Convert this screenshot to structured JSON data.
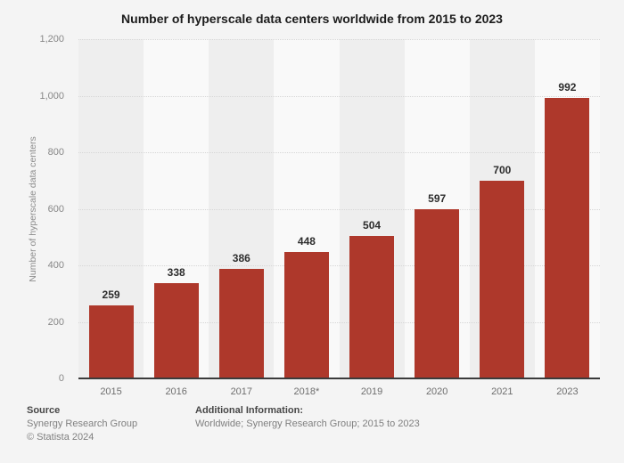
{
  "chart_data": {
    "type": "bar",
    "title": "Number of hyperscale data centers worldwide from 2015 to 2023",
    "categories": [
      "2015",
      "2016",
      "2017",
      "2018*",
      "2019",
      "2020",
      "2021",
      "2023"
    ],
    "values": [
      259,
      338,
      386,
      448,
      504,
      597,
      700,
      992
    ],
    "xlabel": "",
    "ylabel": "Number of hyperscale data centers",
    "ylim": [
      0,
      1200
    ],
    "ytick_interval": 200,
    "yticks": [
      {
        "value": 0,
        "label": "0"
      },
      {
        "value": 200,
        "label": "200"
      },
      {
        "value": 400,
        "label": "400"
      },
      {
        "value": 600,
        "label": "600"
      },
      {
        "value": 800,
        "label": "800"
      },
      {
        "value": 1000,
        "label": "1,000"
      },
      {
        "value": 1200,
        "label": "1,200"
      }
    ],
    "grid": "horizontal-dotted",
    "legend": "none",
    "bar_color": "#ae382b",
    "band_color_dark": "#eeeeee",
    "band_color_light": "#f9f9f9",
    "background_color": "#f4f4f4"
  },
  "footer": {
    "source_label": "Source",
    "source_line1": "Synergy Research Group",
    "source_line2": "© Statista 2024",
    "additional_label": "Additional Information:",
    "additional_line1": "Worldwide; Synergy Research Group; 2015 to 2023"
  }
}
